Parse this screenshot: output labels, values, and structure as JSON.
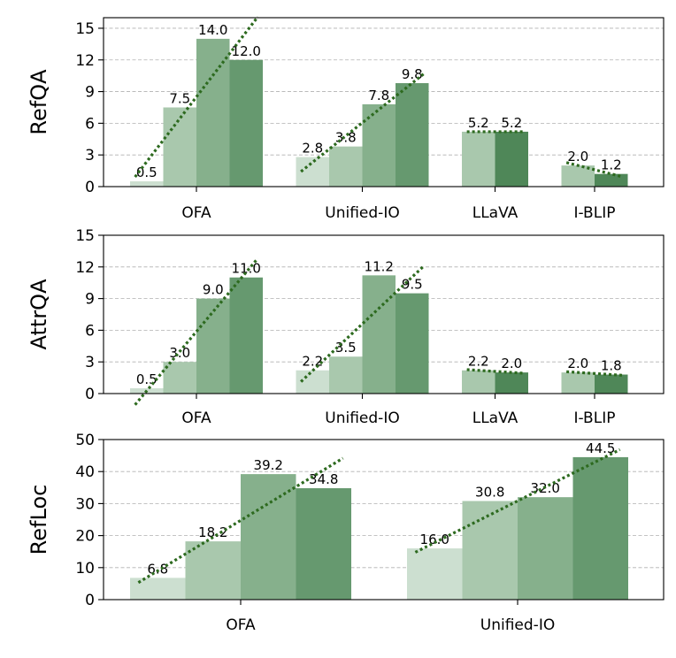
{
  "colors": {
    "shade_1": "#ccdfd0",
    "shade_2": "#a9c8ad",
    "shade_3": "#86b08c",
    "shade_4": "#66996f",
    "shade_dark": "#4f8758",
    "trend_line": "#2d6a1f",
    "grid": "#b0b0b0"
  },
  "chart_data": [
    {
      "type": "bar",
      "ylabel": "RefQA",
      "ylim": [
        0,
        16
      ],
      "yticks": [
        0,
        3,
        6,
        9,
        12,
        15
      ],
      "grid": true,
      "groups": [
        {
          "name": "OFA",
          "values": [
            0.5,
            7.5,
            14.0,
            12.0
          ],
          "labels": [
            "0.5",
            "7.5",
            "14.0",
            "12.0"
          ]
        },
        {
          "name": "Unified-IO",
          "values": [
            2.8,
            3.8,
            7.8,
            9.8
          ],
          "labels": [
            "2.8",
            "3.8",
            "7.8",
            "9.8"
          ]
        },
        {
          "name": "LLaVA",
          "values": [
            5.2,
            5.2
          ],
          "labels": [
            "5.2",
            "5.2"
          ]
        },
        {
          "name": "I-BLIP",
          "values": [
            2.0,
            1.2
          ],
          "labels": [
            "2.0",
            "1.2"
          ]
        }
      ]
    },
    {
      "type": "bar",
      "ylabel": "AttrQA",
      "ylim": [
        0,
        15
      ],
      "yticks": [
        0,
        3,
        6,
        9,
        12,
        15
      ],
      "grid": true,
      "groups": [
        {
          "name": "OFA",
          "values": [
            0.5,
            3.0,
            9.0,
            11.0
          ],
          "labels": [
            "0.5",
            "3.0",
            "9.0",
            "11.0"
          ]
        },
        {
          "name": "Unified-IO",
          "values": [
            2.2,
            3.5,
            11.2,
            9.5
          ],
          "labels": [
            "2.2",
            "3.5",
            "11.2",
            "9.5"
          ]
        },
        {
          "name": "LLaVA",
          "values": [
            2.2,
            2.0
          ],
          "labels": [
            "2.2",
            "2.0"
          ]
        },
        {
          "name": "I-BLIP",
          "values": [
            2.0,
            1.8
          ],
          "labels": [
            "2.0",
            "1.8"
          ]
        }
      ]
    },
    {
      "type": "bar",
      "ylabel": "RefLoc",
      "ylim": [
        0,
        50
      ],
      "yticks": [
        0,
        10,
        20,
        30,
        40,
        50
      ],
      "grid": true,
      "groups": [
        {
          "name": "OFA",
          "values": [
            6.8,
            18.2,
            39.2,
            34.8
          ],
          "labels": [
            "6.8",
            "18.2",
            "39.2",
            "34.8"
          ]
        },
        {
          "name": "Unified-IO",
          "values": [
            16.0,
            30.8,
            32.0,
            44.5
          ],
          "labels": [
            "16.0",
            "30.8",
            "32.0",
            "44.5"
          ]
        }
      ]
    }
  ]
}
